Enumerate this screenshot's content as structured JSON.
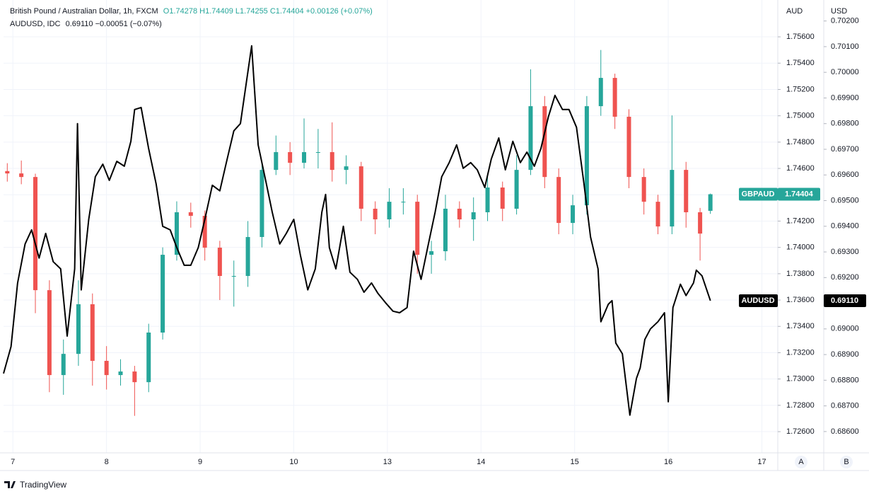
{
  "chart_data": {
    "type": "candlestick",
    "header": {
      "title": "British Pound / Australian Dollar, 1h, FXCM",
      "ohlc": "O1.74278 H1.74409 L1.74255 C1.74404 +0.00126 (+0.07%)",
      "compare_title": "AUDUSD, IDC",
      "compare_values": "0.69110 −0.00051 (−0.07%)"
    },
    "y_axis_label": "AUD",
    "y2_axis_label": "USD",
    "brand": "TradingView",
    "axis_buttons": [
      "A",
      "B"
    ],
    "xlim": [
      -0.1,
      8.17
    ],
    "xticks": [
      {
        "value": 0,
        "label": "7"
      },
      {
        "value": 1,
        "label": "8"
      },
      {
        "value": 2,
        "label": "9"
      },
      {
        "value": 3,
        "label": "10"
      },
      {
        "value": 4,
        "label": "13"
      },
      {
        "value": 5,
        "label": "14"
      },
      {
        "value": 6,
        "label": "15"
      },
      {
        "value": 7,
        "label": "16"
      },
      {
        "value": 8,
        "label": "17"
      }
    ],
    "ylim": [
      1.72439,
      1.75853
    ],
    "yticks": [
      {
        "value": 1.726,
        "label": "1.72600"
      },
      {
        "value": 1.728,
        "label": "1.72800"
      },
      {
        "value": 1.73,
        "label": "1.73000"
      },
      {
        "value": 1.732,
        "label": "1.73200"
      },
      {
        "value": 1.734,
        "label": "1.73400"
      },
      {
        "value": 1.736,
        "label": "1.73600"
      },
      {
        "value": 1.738,
        "label": "1.73800"
      },
      {
        "value": 1.74,
        "label": "1.74000"
      },
      {
        "value": 1.742,
        "label": "1.74200"
      },
      {
        "value": 1.744,
        "label": "1.74400"
      },
      {
        "value": 1.746,
        "label": "1.74600"
      },
      {
        "value": 1.748,
        "label": "1.74800"
      },
      {
        "value": 1.75,
        "label": "1.75000"
      },
      {
        "value": 1.752,
        "label": "1.75200"
      },
      {
        "value": 1.754,
        "label": "1.75400"
      },
      {
        "value": 1.756,
        "label": "1.75600"
      }
    ],
    "y2lim": [
      0.68517,
      0.70268
    ],
    "y2ticks": [
      {
        "value": 0.686,
        "label": "0.68600"
      },
      {
        "value": 0.687,
        "label": "0.68700"
      },
      {
        "value": 0.688,
        "label": "0.68800"
      },
      {
        "value": 0.689,
        "label": "0.68900"
      },
      {
        "value": 0.69,
        "label": "0.69000"
      },
      {
        "value": 0.691,
        "label": "0.69100"
      },
      {
        "value": 0.692,
        "label": "0.69200"
      },
      {
        "value": 0.693,
        "label": "0.69300"
      },
      {
        "value": 0.694,
        "label": "0.69400"
      },
      {
        "value": 0.695,
        "label": "0.69500"
      },
      {
        "value": 0.696,
        "label": "0.69600"
      },
      {
        "value": 0.697,
        "label": "0.69700"
      },
      {
        "value": 0.698,
        "label": "0.69800"
      },
      {
        "value": 0.699,
        "label": "0.69900"
      },
      {
        "value": 0.7,
        "label": "0.70000"
      },
      {
        "value": 0.701,
        "label": "0.70100"
      },
      {
        "value": 0.702,
        "label": "0.70200"
      }
    ],
    "grid": true,
    "series": [
      {
        "name": "GBPAUD",
        "type": "candlestick",
        "up_color": "#26a69a",
        "down_color": "#ef5350",
        "last_label": "1.74404",
        "x": [
          -0.06,
          0.09,
          0.24,
          0.39,
          0.54,
          0.7,
          0.85,
          1.0,
          1.15,
          1.3,
          1.45,
          1.6,
          1.75,
          1.9,
          2.05,
          2.21,
          2.36,
          2.51,
          2.66,
          2.81,
          2.96,
          3.11,
          3.26,
          3.41,
          3.56,
          3.72,
          3.87,
          4.02,
          4.17,
          4.32,
          4.47,
          4.62,
          4.77,
          4.92,
          5.07,
          5.23,
          5.38,
          5.53,
          5.68,
          5.83,
          5.98,
          6.13,
          6.28,
          6.43,
          6.58,
          6.74,
          6.89,
          7.04,
          7.19,
          7.34,
          7.45
        ],
        "open": [
          1.7458,
          1.74562,
          1.74535,
          1.73675,
          1.7303,
          1.73191,
          1.73568,
          1.73138,
          1.7303,
          1.73057,
          1.72976,
          1.73353,
          1.73944,
          1.74267,
          1.7424,
          1.73998,
          1.73783,
          1.73783,
          1.74079,
          1.74589,
          1.74724,
          1.74643,
          1.74724,
          1.74724,
          1.74589,
          1.74616,
          1.74294,
          1.74213,
          1.74347,
          1.74347,
          1.73944,
          1.73971,
          1.74294,
          1.74213,
          1.74267,
          1.74455,
          1.74294,
          1.74589,
          1.75073,
          1.74535,
          1.74186,
          1.7432,
          1.75073,
          1.75288,
          1.74993,
          1.74535,
          1.74347,
          1.74159,
          1.74589,
          1.74267,
          1.74278
        ],
        "high": [
          1.7464,
          1.7466,
          1.7456,
          1.7375,
          1.733,
          1.7375,
          1.7365,
          1.7325,
          1.7315,
          1.731,
          1.7342,
          1.74,
          1.7435,
          1.7434,
          1.7428,
          1.7405,
          1.739,
          1.742,
          1.7465,
          1.7485,
          1.748,
          1.7498,
          1.749,
          1.7495,
          1.747,
          1.7465,
          1.7435,
          1.7445,
          1.7445,
          1.744,
          1.7405,
          1.744,
          1.7435,
          1.7438,
          1.7455,
          1.745,
          1.747,
          1.75353,
          1.7515,
          1.746,
          1.744,
          1.7515,
          1.755,
          1.7532,
          1.7505,
          1.746,
          1.744,
          1.75003,
          1.7465,
          1.743,
          1.74409
        ],
        "low": [
          1.745,
          1.7448,
          1.735,
          1.729,
          1.7288,
          1.731,
          1.7295,
          1.7292,
          1.7295,
          1.7272,
          1.729,
          1.733,
          1.739,
          1.7415,
          1.739,
          1.736,
          1.7355,
          1.737,
          1.74,
          1.7455,
          1.7455,
          1.746,
          1.746,
          1.745,
          1.7448,
          1.742,
          1.741,
          1.7415,
          1.7425,
          1.738,
          1.738,
          1.739,
          1.7415,
          1.7405,
          1.742,
          1.742,
          1.7425,
          1.7455,
          1.7445,
          1.741,
          1.741,
          1.7425,
          1.75,
          1.749,
          1.7445,
          1.7425,
          1.741,
          1.741,
          1.7415,
          1.739,
          1.74255
        ],
        "close": [
          1.74562,
          1.74535,
          1.73675,
          1.7303,
          1.73191,
          1.73568,
          1.73138,
          1.7303,
          1.73057,
          1.72976,
          1.73353,
          1.73944,
          1.74267,
          1.7424,
          1.73998,
          1.73783,
          1.73783,
          1.74079,
          1.74589,
          1.74724,
          1.74643,
          1.74724,
          1.74724,
          1.74589,
          1.74616,
          1.74294,
          1.74213,
          1.74347,
          1.74347,
          1.73944,
          1.73971,
          1.74294,
          1.74213,
          1.74267,
          1.74455,
          1.74294,
          1.74589,
          1.75073,
          1.74535,
          1.74186,
          1.7432,
          1.75073,
          1.75288,
          1.74993,
          1.74535,
          1.74347,
          1.74159,
          1.74589,
          1.74267,
          1.74105,
          1.74404
        ]
      },
      {
        "name": "AUDUSD",
        "type": "line",
        "axis": "y2",
        "color": "#000000",
        "last_label": "0.69110",
        "x": [
          -0.1,
          -0.02,
          0.05,
          0.13,
          0.2,
          0.28,
          0.35,
          0.43,
          0.51,
          0.58,
          0.66,
          0.69,
          0.73,
          0.81,
          0.88,
          0.96,
          1.03,
          1.11,
          1.19,
          1.26,
          1.3,
          1.37,
          1.45,
          1.53,
          1.6,
          1.68,
          1.75,
          1.83,
          1.9,
          1.98,
          2.05,
          2.13,
          2.21,
          2.28,
          2.36,
          2.43,
          2.55,
          2.62,
          2.7,
          2.77,
          2.85,
          2.92,
          3.0,
          3.07,
          3.15,
          3.23,
          3.3,
          3.34,
          3.38,
          3.45,
          3.53,
          3.6,
          3.68,
          3.75,
          3.83,
          3.9,
          3.98,
          4.06,
          4.13,
          4.21,
          4.28,
          4.36,
          4.43,
          4.51,
          4.58,
          4.66,
          4.74,
          4.81,
          4.89,
          4.96,
          5.04,
          5.11,
          5.19,
          5.26,
          5.34,
          5.42,
          5.49,
          5.57,
          5.64,
          5.72,
          5.79,
          5.87,
          5.94,
          6.02,
          6.1,
          6.17,
          6.25,
          6.28,
          6.36,
          6.4,
          6.44,
          6.51,
          6.59,
          6.66,
          6.7,
          6.75,
          6.81,
          6.89,
          6.96,
          7.0,
          7.05,
          7.13,
          7.19,
          7.27,
          7.3,
          7.36,
          7.45
        ],
        "values": [
          0.68826,
          0.68931,
          0.69179,
          0.69331,
          0.69386,
          0.69276,
          0.69372,
          0.69262,
          0.69234,
          0.68972,
          0.69234,
          0.698,
          0.69152,
          0.69427,
          0.69593,
          0.69642,
          0.69579,
          0.69653,
          0.69634,
          0.69731,
          0.69855,
          0.69863,
          0.69703,
          0.69565,
          0.694,
          0.69386,
          0.69317,
          0.69248,
          0.69248,
          0.69317,
          0.69427,
          0.6956,
          0.69538,
          0.69648,
          0.69772,
          0.698,
          0.70103,
          0.69717,
          0.69579,
          0.69455,
          0.69331,
          0.69372,
          0.69427,
          0.69289,
          0.69152,
          0.69234,
          0.69455,
          0.69524,
          0.69317,
          0.69234,
          0.694,
          0.69221,
          0.69193,
          0.69143,
          0.69179,
          0.69138,
          0.69102,
          0.69069,
          0.69063,
          0.69083,
          0.69303,
          0.69193,
          0.69317,
          0.69455,
          0.69593,
          0.69648,
          0.69717,
          0.69626,
          0.69648,
          0.6962,
          0.69551,
          0.69662,
          0.69744,
          0.6962,
          0.69731,
          0.69648,
          0.69689,
          0.69634,
          0.69703,
          0.69827,
          0.6991,
          0.69855,
          0.69855,
          0.69786,
          0.69565,
          0.69358,
          0.69234,
          0.69028,
          0.69096,
          0.6911,
          0.68945,
          0.68903,
          0.68664,
          0.68807,
          0.68848,
          0.68959,
          0.69,
          0.69028,
          0.69063,
          0.68716,
          0.69083,
          0.69174,
          0.6913,
          0.69179,
          0.69229,
          0.69207,
          0.6911
        ]
      }
    ]
  }
}
